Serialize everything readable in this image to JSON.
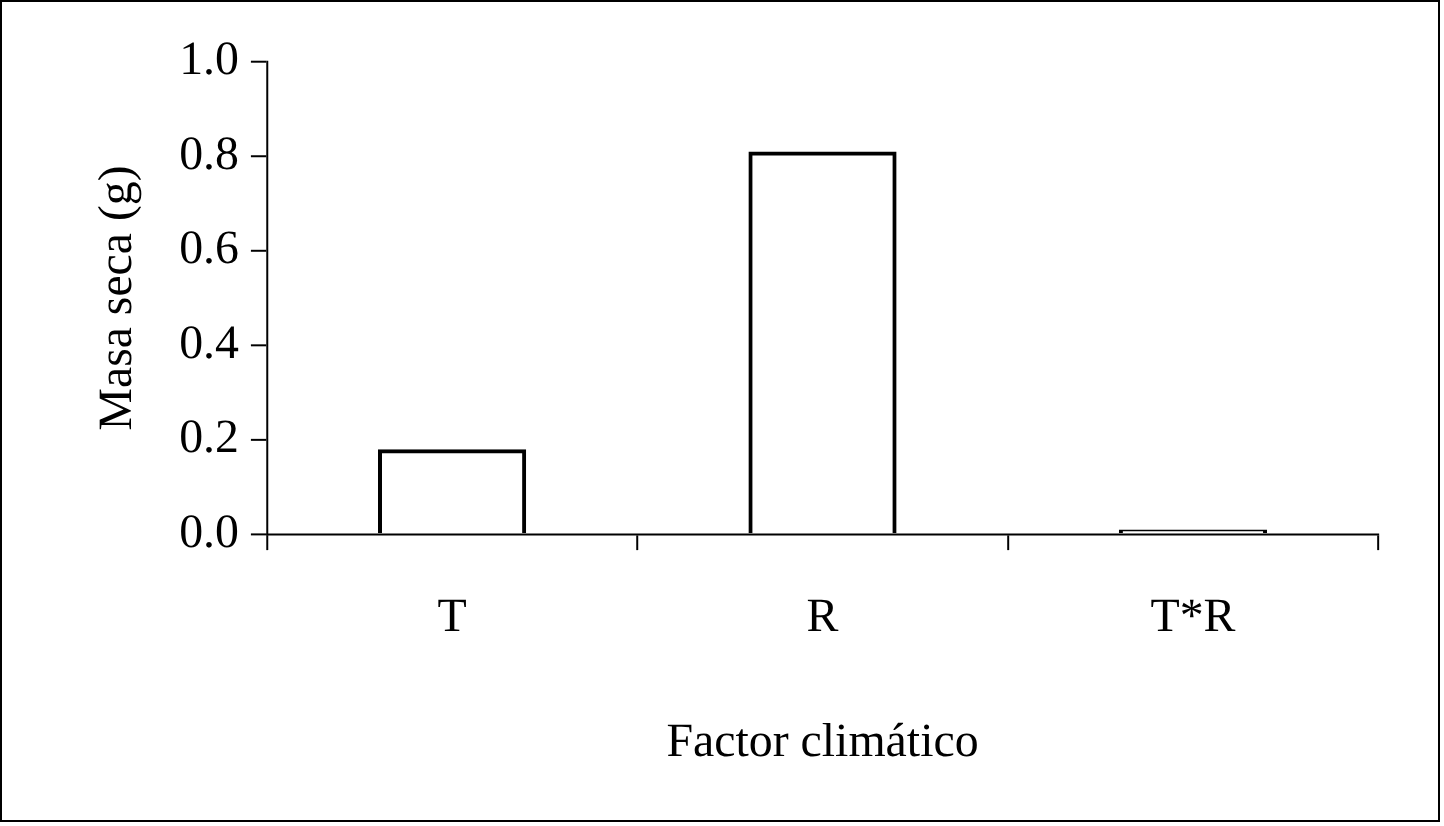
{
  "chart_data": {
    "type": "bar",
    "xlabel": "Factor climático",
    "ylabel": "Masa seca (g)",
    "categories": [
      "T",
      "R",
      "T*R"
    ],
    "series": [
      {
        "color": "#000000",
        "values": [
          0.18,
          0.81,
          0.01
        ]
      }
    ],
    "ylim": [
      0,
      1.0
    ],
    "yticks": [
      {
        "value": 0,
        "label": "0.0"
      },
      {
        "value": 0.2,
        "label": "0.2"
      },
      {
        "value": 0.4,
        "label": "0.4"
      },
      {
        "value": 0.6,
        "label": "0.6"
      },
      {
        "value": 0.8,
        "label": "0.8"
      },
      {
        "value": 1.0,
        "label": "1.0"
      }
    ],
    "grid": false,
    "legend": false
  }
}
